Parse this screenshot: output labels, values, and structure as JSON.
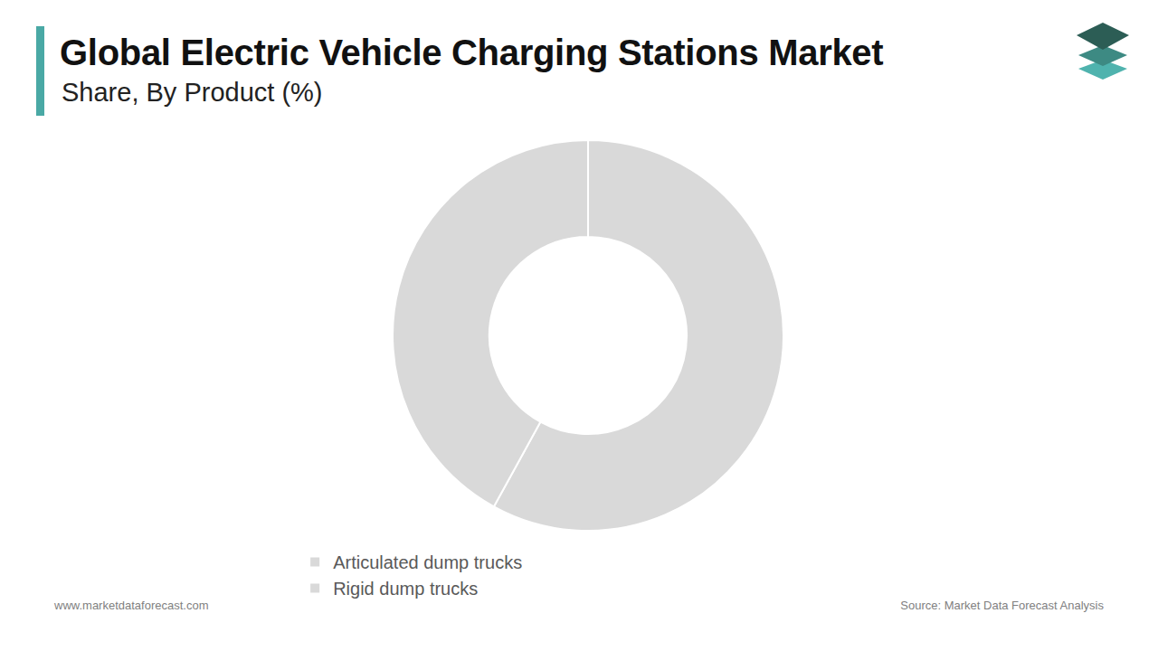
{
  "chart_data": {
    "type": "pie",
    "title": "Global Electric Vehicle Charging Stations Market",
    "subtitle": "Share, By Product (%)",
    "categories": [
      "Articulated dump trucks",
      "Rigid dump trucks"
    ],
    "values": [
      58,
      42
    ],
    "colors": [
      "#d9d9d9",
      "#d9d9d9"
    ],
    "legend": "bottom",
    "data_labels": false,
    "annotations": [
      "www.marketdataforecast.com",
      "Source: Market Data Forecast Analysis"
    ]
  }
}
